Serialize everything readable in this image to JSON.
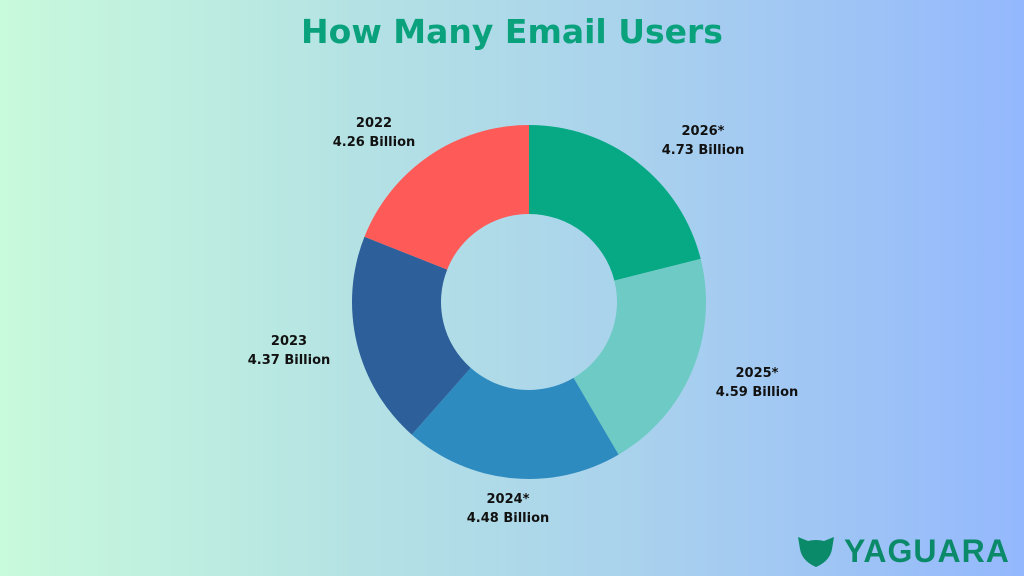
{
  "chart_data": {
    "type": "pie",
    "donut": true,
    "title": "How Many Email Users",
    "unit": "Billion",
    "slices": [
      {
        "label": "2026*",
        "value": 4.73,
        "value_label": "4.73 Billion",
        "color": "#07a985"
      },
      {
        "label": "2025*",
        "value": 4.59,
        "value_label": "4.59 Billion",
        "color": "#6ecac4"
      },
      {
        "label": "2024*",
        "value": 4.48,
        "value_label": "4.48 Billion",
        "color": "#2e8bc0"
      },
      {
        "label": "2023",
        "value": 4.37,
        "value_label": "4.37 Billion",
        "color": "#2d5f9a"
      },
      {
        "label": "2022",
        "value": 4.26,
        "value_label": "4.26 Billion",
        "color": "#fe5a58"
      }
    ],
    "start": "top",
    "direction": "clockwise"
  },
  "logo": {
    "text": "YAGUARA",
    "color": "#0b8a6a"
  }
}
